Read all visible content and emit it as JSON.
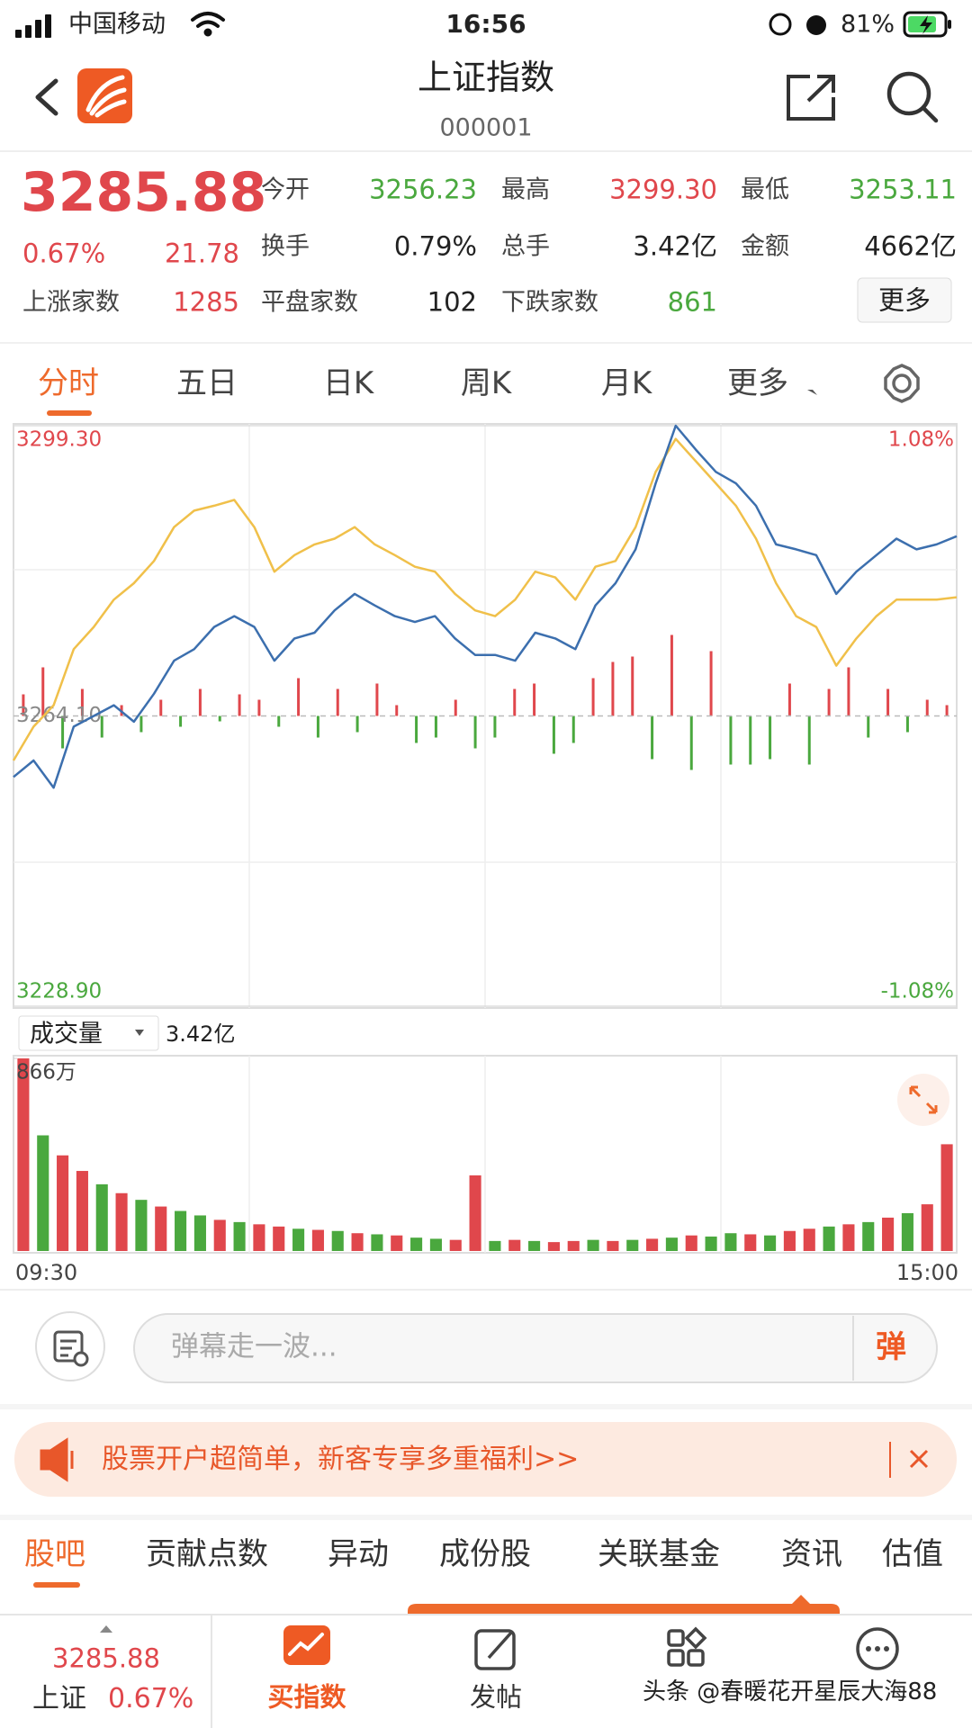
{
  "status_bar": {
    "carrier": "中国移动",
    "time": "16:56",
    "battery": "81%"
  },
  "header": {
    "title": "上证指数",
    "code": "000001"
  },
  "quote": {
    "price": "3285.88",
    "change_pct": "0.67%",
    "change": "21.78",
    "stats": [
      {
        "label": "今开",
        "value": "3256.23",
        "color": "#4aa83e"
      },
      {
        "label": "最高",
        "value": "3299.30",
        "color": "#e0474c"
      },
      {
        "label": "最低",
        "value": "3253.11",
        "color": "#4aa83e"
      },
      {
        "label": "换手",
        "value": "0.79%",
        "color": "#222222"
      },
      {
        "label": "总手",
        "value": "3.42亿",
        "color": "#222222"
      },
      {
        "label": "金额",
        "value": "4662亿",
        "color": "#222222"
      }
    ],
    "breadth": [
      {
        "label": "上涨家数",
        "value": "1285",
        "color": "#e0474c"
      },
      {
        "label": "平盘家数",
        "value": "102",
        "color": "#222222"
      },
      {
        "label": "下跌家数",
        "value": "861",
        "color": "#4aa83e"
      }
    ],
    "more": "更多"
  },
  "tabs": [
    "分时",
    "五日",
    "日K",
    "周K",
    "月K",
    "更多"
  ],
  "chart_data": [
    {
      "type": "line",
      "ylim": [
        3228.9,
        3299.3
      ],
      "yticks": [
        {
          "value": 3228.9,
          "label": "3228.90"
        },
        {
          "value": 3264.1,
          "label": "3264.10"
        },
        {
          "value": 3299.3,
          "label": "3299.30"
        }
      ],
      "y2lim": [
        -1.08,
        1.08
      ],
      "y2ticks": [
        {
          "value": -1.08,
          "label": "-1.08%"
        },
        {
          "value": 1.08,
          "label": "1.08%"
        }
      ],
      "up_color": "#e0474c",
      "down_color": "#4aa83e",
      "series": [
        {
          "color": "#3c6fae",
          "values": [
            3256.7,
            3258.7,
            3255.4,
            3262.8,
            3264.1,
            3265.4,
            3263.4,
            3266.8,
            3270.8,
            3272.2,
            3274.9,
            3276.2,
            3274.9,
            3270.8,
            3273.5,
            3274.2,
            3276.9,
            3278.9,
            3277.5,
            3276.2,
            3275.5,
            3276.2,
            3273.5,
            3271.5,
            3271.5,
            3270.8,
            3274.2,
            3273.5,
            3272.2,
            3277.5,
            3280.2,
            3284.3,
            3292.3,
            3299.3,
            3296.4,
            3293.7,
            3292.3,
            3289.6,
            3284.9,
            3284.3,
            3283.6,
            3278.9,
            3281.6,
            3283.6,
            3285.6,
            3284.3,
            3284.9,
            3285.9
          ]
        },
        {
          "color": "#f0c04a",
          "values": [
            3258.7,
            3262.8,
            3265.4,
            3272.2,
            3274.9,
            3278.2,
            3280.2,
            3282.9,
            3287.0,
            3289.0,
            3289.6,
            3290.3,
            3287.0,
            3281.6,
            3283.6,
            3284.9,
            3285.6,
            3287.0,
            3284.9,
            3283.6,
            3282.2,
            3281.6,
            3278.9,
            3276.9,
            3276.2,
            3278.2,
            3281.6,
            3280.9,
            3278.2,
            3282.2,
            3282.9,
            3287.0,
            3293.7,
            3297.7,
            3295.0,
            3292.3,
            3289.6,
            3285.6,
            3280.2,
            3276.2,
            3274.9,
            3270.2,
            3273.5,
            3276.2,
            3278.2,
            3278.2,
            3278.2,
            3278.5
          ]
        }
      ],
      "bars": {
        "lim": [
          -100,
          100
        ],
        "values": [
          20,
          45,
          -30,
          25,
          -20,
          10,
          -15,
          15,
          -10,
          25,
          -5,
          20,
          15,
          -10,
          35,
          -20,
          25,
          -15,
          30,
          10,
          -25,
          -20,
          15,
          -30,
          -20,
          25,
          30,
          -35,
          -25,
          35,
          50,
          55,
          -40,
          75,
          -50,
          60,
          -45,
          -45,
          -40,
          30,
          -45,
          25,
          45,
          -20,
          25,
          -15,
          15,
          10
        ]
      }
    },
    {
      "type": "bar",
      "title": "成交量",
      "subtitle": "3.42亿",
      "ylim": [
        0,
        866
      ],
      "yticks": [
        {
          "value": 866,
          "label": "866万"
        }
      ],
      "xtick_labels": [
        "09:30",
        "15:00"
      ],
      "values": [
        866,
        520,
        430,
        360,
        300,
        260,
        230,
        200,
        180,
        160,
        140,
        130,
        120,
        110,
        100,
        95,
        90,
        80,
        75,
        70,
        60,
        55,
        50,
        340,
        45,
        50,
        45,
        40,
        45,
        50,
        45,
        50,
        55,
        60,
        70,
        65,
        80,
        75,
        70,
        90,
        100,
        110,
        120,
        130,
        150,
        170,
        210,
        480
      ],
      "colors": [
        "#e0474c",
        "#4aa83e",
        "#e0474c",
        "#e0474c",
        "#4aa83e",
        "#e0474c",
        "#4aa83e",
        "#e0474c",
        "#4aa83e",
        "#4aa83e",
        "#e0474c",
        "#4aa83e",
        "#e0474c",
        "#e0474c",
        "#4aa83e",
        "#e0474c",
        "#4aa83e",
        "#e0474c",
        "#4aa83e",
        "#e0474c",
        "#4aa83e",
        "#4aa83e",
        "#e0474c",
        "#e0474c",
        "#4aa83e",
        "#e0474c",
        "#4aa83e",
        "#e0474c",
        "#e0474c",
        "#4aa83e",
        "#e0474c",
        "#4aa83e",
        "#e0474c",
        "#4aa83e",
        "#e0474c",
        "#4aa83e",
        "#4aa83e",
        "#e0474c",
        "#4aa83e",
        "#e0474c",
        "#e0474c",
        "#4aa83e",
        "#e0474c",
        "#4aa83e",
        "#e0474c",
        "#4aa83e",
        "#e0474c",
        "#e0474c"
      ]
    }
  ],
  "comment_bar": {
    "placeholder": "弹幕走一波...",
    "button": "弹"
  },
  "ad": {
    "text": "股票开户超简单，新客专享多重福利>>"
  },
  "sub_tabs": [
    "股吧",
    "贡献点数",
    "异动",
    "成份股",
    "关联基金",
    "资讯",
    "估值"
  ],
  "bottom_nav": {
    "price": "3285.88",
    "index_name": "上证",
    "change_pct": "0.67%",
    "buy": "买指数",
    "post": "发帖"
  },
  "watermark": "头条 @春暖花开星辰大海88"
}
